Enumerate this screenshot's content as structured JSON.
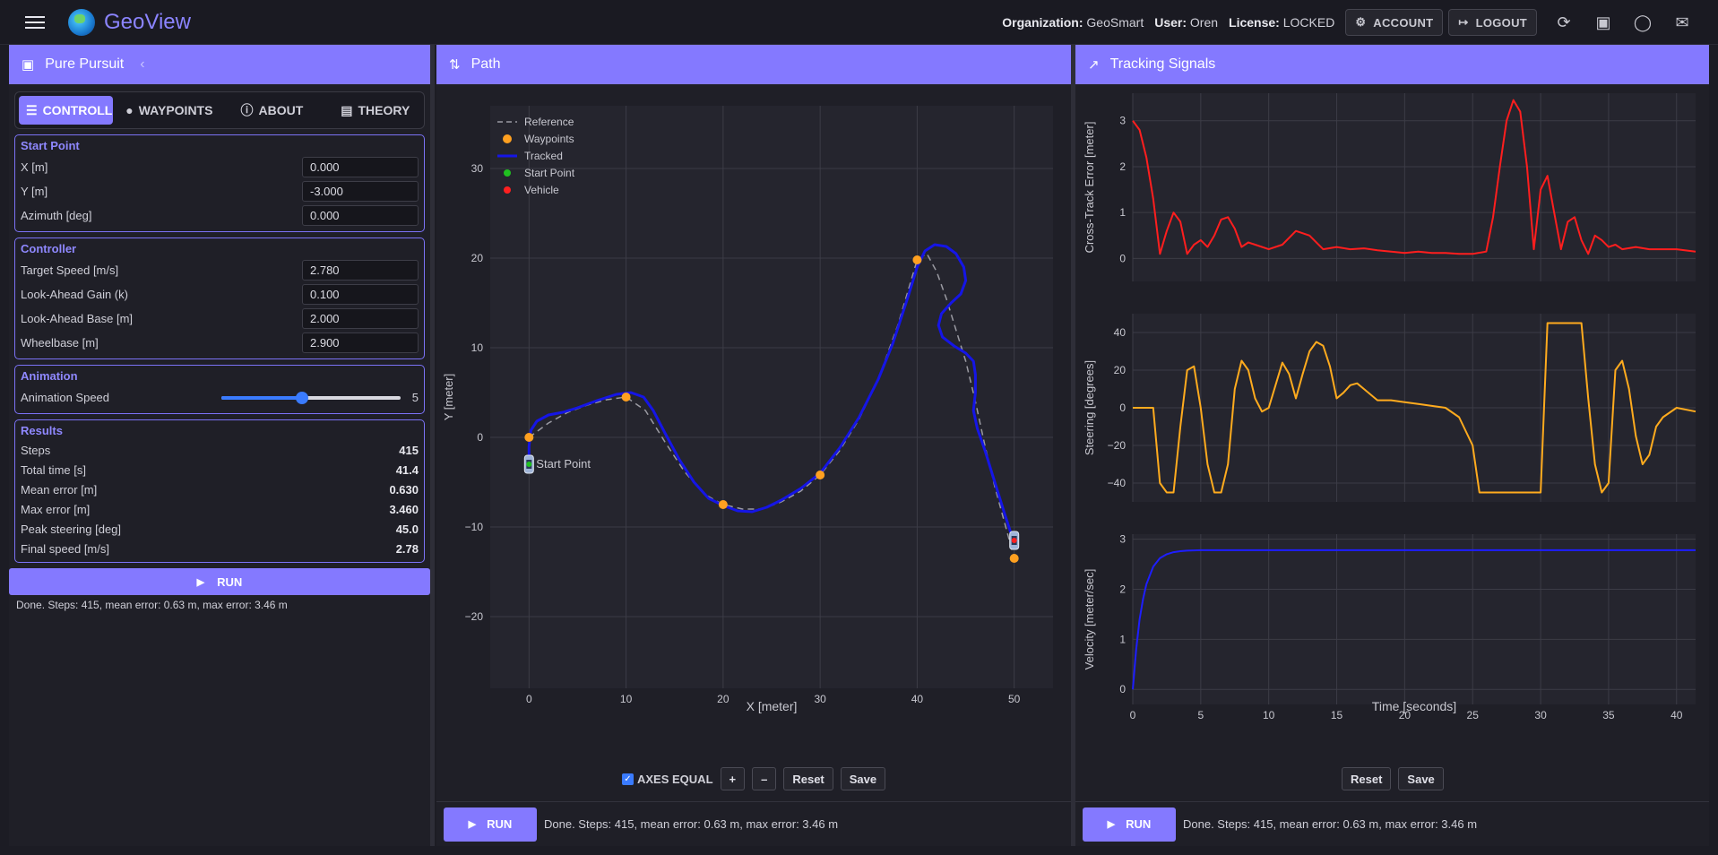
{
  "app": {
    "brand": "GeoView"
  },
  "topbar": {
    "org_label": "Organization:",
    "org_value": "GeoSmart",
    "user_label": "User:",
    "user_value": "Oren",
    "license_label": "License:",
    "license_value": "LOCKED",
    "account_label": "ACCOUNT",
    "logout_label": "LOGOUT"
  },
  "left": {
    "title": "Pure Pursuit",
    "tabs": [
      {
        "label": "CONTROLLER",
        "icon": "sliders-icon"
      },
      {
        "label": "WAYPOINTS",
        "icon": "pin-icon"
      },
      {
        "label": "ABOUT",
        "icon": "info-icon"
      },
      {
        "label": "THEORY",
        "icon": "book-icon"
      }
    ],
    "start": {
      "title": "Start Point",
      "fields": [
        {
          "label": "X [m]",
          "value": "0.000"
        },
        {
          "label": "Y [m]",
          "value": "-3.000"
        },
        {
          "label": "Azimuth [deg]",
          "value": "0.000"
        }
      ]
    },
    "controller": {
      "title": "Controller",
      "fields": [
        {
          "label": "Target Speed [m/s]",
          "value": "2.780"
        },
        {
          "label": "Look-Ahead Gain (k)",
          "value": "0.100"
        },
        {
          "label": "Look-Ahead Base [m]",
          "value": "2.000"
        },
        {
          "label": "Wheelbase [m]",
          "value": "2.900"
        }
      ]
    },
    "animation": {
      "title": "Animation",
      "label": "Animation Speed",
      "value": "5",
      "fraction": 0.45
    },
    "results": {
      "title": "Results",
      "rows": [
        {
          "label": "Steps",
          "value": "415"
        },
        {
          "label": "Total time [s]",
          "value": "41.4"
        },
        {
          "label": "Mean error [m]",
          "value": "0.630"
        },
        {
          "label": "Max error [m]",
          "value": "3.460"
        },
        {
          "label": "Peak steering [deg]",
          "value": "45.0"
        },
        {
          "label": "Final speed [m/s]",
          "value": "2.78"
        }
      ]
    },
    "run_label": "RUN",
    "status": "Done. Steps: 415, mean error: 0.63 m, max error: 3.46 m"
  },
  "mid": {
    "title": "Path",
    "axes_equal_label": "AXES EQUAL",
    "plus_label": "+",
    "minus_label": "–",
    "reset_label": "Reset",
    "save_label": "Save",
    "run_label": "RUN",
    "status": "Done. Steps: 415, mean error: 0.63 m, max error: 3.46 m"
  },
  "right": {
    "title": "Tracking Signals",
    "reset_label": "Reset",
    "save_label": "Save",
    "run_label": "RUN",
    "status": "Done. Steps: 415, mean error: 0.63 m, max error: 3.46 m"
  },
  "chart_data": [
    {
      "type": "line",
      "xlabel": "X [meter]",
      "ylabel": "Y [meter]",
      "xlim": [
        -4,
        54
      ],
      "ylim": [
        -28,
        37
      ],
      "xticks": [
        0,
        10,
        20,
        30,
        40,
        50
      ],
      "yticks": [
        -20,
        -10,
        0,
        10,
        20,
        30
      ],
      "grid": true,
      "legend": "top-left",
      "legend_entries": [
        "Reference",
        "Waypoints",
        "Tracked",
        "Start Point",
        "Vehicle"
      ],
      "waypoints": [
        [
          0,
          0
        ],
        [
          10,
          4.5
        ],
        [
          20,
          -7.5
        ],
        [
          30,
          -4.2
        ],
        [
          40,
          19.8
        ],
        [
          50,
          -13.5
        ]
      ],
      "reference": [
        [
          0,
          0
        ],
        [
          2,
          1.6
        ],
        [
          4,
          2.8
        ],
        [
          6,
          3.6
        ],
        [
          8,
          4.2
        ],
        [
          10,
          4.5
        ],
        [
          12,
          3
        ],
        [
          14,
          -0.5
        ],
        [
          16,
          -3.8
        ],
        [
          18,
          -6.3
        ],
        [
          20,
          -7.5
        ],
        [
          22,
          -8
        ],
        [
          24,
          -8
        ],
        [
          26,
          -7.2
        ],
        [
          28,
          -6
        ],
        [
          30,
          -4.2
        ],
        [
          32,
          -1.5
        ],
        [
          34,
          2
        ],
        [
          36,
          6.5
        ],
        [
          38,
          12.5
        ],
        [
          40,
          19.8
        ],
        [
          41,
          20.5
        ],
        [
          42,
          18.5
        ],
        [
          43,
          15.5
        ],
        [
          44,
          12
        ],
        [
          45,
          8.5
        ],
        [
          46,
          4
        ],
        [
          47,
          -1
        ],
        [
          48,
          -5.5
        ],
        [
          49,
          -9.5
        ],
        [
          50,
          -13.5
        ]
      ],
      "tracked": [
        [
          0,
          -3
        ],
        [
          0,
          -1
        ],
        [
          0.2,
          0.8
        ],
        [
          0.8,
          1.8
        ],
        [
          2,
          2.5
        ],
        [
          3.5,
          2.8
        ],
        [
          5,
          3.3
        ],
        [
          7,
          4.1
        ],
        [
          9,
          4.8
        ],
        [
          10.5,
          5
        ],
        [
          11.8,
          4.5
        ],
        [
          12.8,
          3
        ],
        [
          14,
          0.5
        ],
        [
          15.5,
          -2.5
        ],
        [
          17,
          -5
        ],
        [
          18.5,
          -6.8
        ],
        [
          20,
          -7.6
        ],
        [
          21.5,
          -8.2
        ],
        [
          23,
          -8.3
        ],
        [
          24.5,
          -7.8
        ],
        [
          26,
          -7
        ],
        [
          28,
          -5.7
        ],
        [
          30,
          -4
        ],
        [
          32,
          -1.2
        ],
        [
          34,
          2.2
        ],
        [
          36,
          6.5
        ],
        [
          37.5,
          10.5
        ],
        [
          39,
          15.5
        ],
        [
          40,
          19
        ],
        [
          40.8,
          20.8
        ],
        [
          41.8,
          21.5
        ],
        [
          43,
          21.3
        ],
        [
          44,
          20.5
        ],
        [
          44.8,
          19
        ],
        [
          45,
          17.5
        ],
        [
          44.5,
          16
        ],
        [
          43.5,
          15
        ],
        [
          42.5,
          13.8
        ],
        [
          42.2,
          12.5
        ],
        [
          42.6,
          11.2
        ],
        [
          43.8,
          10.2
        ],
        [
          45,
          9.4
        ],
        [
          45.8,
          8.5
        ],
        [
          46,
          7
        ],
        [
          46,
          5
        ],
        [
          45.8,
          3
        ],
        [
          46.2,
          1
        ],
        [
          47,
          -1.5
        ],
        [
          48,
          -5
        ],
        [
          49,
          -8.5
        ],
        [
          49.9,
          -11.5
        ]
      ],
      "start_point": [
        0,
        -3
      ],
      "vehicle": [
        50,
        -11.5
      ],
      "annotation": "Start Point"
    },
    {
      "type": "line",
      "ylabel": "Cross-Track Error [meter]",
      "xlim": [
        0,
        41.4
      ],
      "ylim": [
        -0.5,
        3.6
      ],
      "xticks": [
        0,
        5,
        10,
        15,
        20,
        25,
        30,
        35,
        40
      ],
      "yticks": [
        0,
        1,
        2,
        3
      ],
      "color": "#ff1e1e",
      "series": [
        {
          "x": [
            0,
            0.5,
            1,
            1.5,
            2,
            2.5,
            3,
            3.5,
            4,
            4.5,
            5,
            5.5,
            6,
            6.5,
            7,
            7.5,
            8,
            8.5,
            9,
            10,
            11,
            12,
            13,
            14,
            15,
            16,
            17,
            18,
            19,
            20,
            21,
            22,
            23,
            24,
            25,
            26,
            26.5,
            27,
            27.5,
            28,
            28.5,
            29,
            29.5,
            30,
            30.5,
            31,
            31.5,
            32,
            32.5,
            33,
            33.5,
            34,
            34.5,
            35,
            35.5,
            36,
            37,
            38,
            39,
            40,
            41.4
          ],
          "y": [
            3,
            2.8,
            2.2,
            1.3,
            0.1,
            0.6,
            1,
            0.8,
            0.1,
            0.3,
            0.4,
            0.25,
            0.5,
            0.85,
            0.9,
            0.65,
            0.25,
            0.35,
            0.3,
            0.2,
            0.3,
            0.6,
            0.5,
            0.2,
            0.25,
            0.2,
            0.22,
            0.18,
            0.15,
            0.12,
            0.15,
            0.12,
            0.12,
            0.1,
            0.1,
            0.15,
            0.9,
            2,
            3,
            3.45,
            3.2,
            2,
            0.2,
            1.5,
            1.8,
            1,
            0.2,
            0.8,
            0.9,
            0.4,
            0.1,
            0.5,
            0.4,
            0.25,
            0.3,
            0.2,
            0.25,
            0.2,
            0.2,
            0.2,
            0.15
          ]
        }
      ]
    },
    {
      "type": "line",
      "ylabel": "Steering [degrees]",
      "xlim": [
        0,
        41.4
      ],
      "ylim": [
        -50,
        50
      ],
      "xticks": [
        0,
        5,
        10,
        15,
        20,
        25,
        30,
        35,
        40
      ],
      "yticks": [
        -40,
        -20,
        0,
        20,
        40
      ],
      "color": "#ffab1e",
      "series": [
        {
          "x": [
            0,
            1,
            1.5,
            2,
            2.5,
            3,
            3.5,
            4,
            4.5,
            5,
            5.5,
            6,
            6.5,
            7,
            7.5,
            8,
            8.5,
            9,
            9.5,
            10,
            10.5,
            11,
            11.5,
            12,
            12.5,
            13,
            13.5,
            14,
            14.5,
            15,
            15.5,
            16,
            16.5,
            17,
            18,
            19,
            20,
            21,
            22,
            23,
            24,
            25,
            25.5,
            26,
            26.5,
            27,
            28,
            29,
            30,
            30.5,
            31,
            32,
            32.5,
            33,
            33.5,
            34,
            34.5,
            35,
            35.5,
            36,
            36.5,
            37,
            37.5,
            38,
            38.5,
            39,
            40,
            41.4
          ],
          "y": [
            0,
            0,
            0,
            -40,
            -45,
            -45,
            -10,
            20,
            22,
            0,
            -30,
            -45,
            -45,
            -30,
            10,
            25,
            20,
            5,
            -2,
            0,
            12,
            24,
            18,
            5,
            18,
            30,
            35,
            33,
            22,
            5,
            8,
            12,
            13,
            10,
            4,
            4,
            3,
            2,
            1,
            0,
            -5,
            -20,
            -45,
            -45,
            -45,
            -45,
            -45,
            -45,
            -45,
            45,
            45,
            45,
            45,
            45,
            5,
            -30,
            -45,
            -40,
            20,
            25,
            10,
            -15,
            -30,
            -25,
            -10,
            -5,
            0,
            -2
          ]
        }
      ]
    },
    {
      "type": "line",
      "xlabel": "Time [seconds]",
      "ylabel": "Velocity [meter/sec]",
      "xlim": [
        0,
        41.4
      ],
      "ylim": [
        -0.3,
        3.1
      ],
      "xticks": [
        0,
        5,
        10,
        15,
        20,
        25,
        30,
        35,
        40
      ],
      "yticks": [
        0,
        1,
        2,
        3
      ],
      "color": "#1e1eff",
      "series": [
        {
          "x": [
            0,
            0.25,
            0.5,
            0.75,
            1,
            1.5,
            2,
            2.5,
            3,
            3.5,
            4,
            5,
            6,
            41.4
          ],
          "y": [
            0,
            0.8,
            1.4,
            1.8,
            2.1,
            2.45,
            2.62,
            2.7,
            2.74,
            2.76,
            2.77,
            2.78,
            2.78,
            2.78
          ]
        }
      ]
    }
  ]
}
